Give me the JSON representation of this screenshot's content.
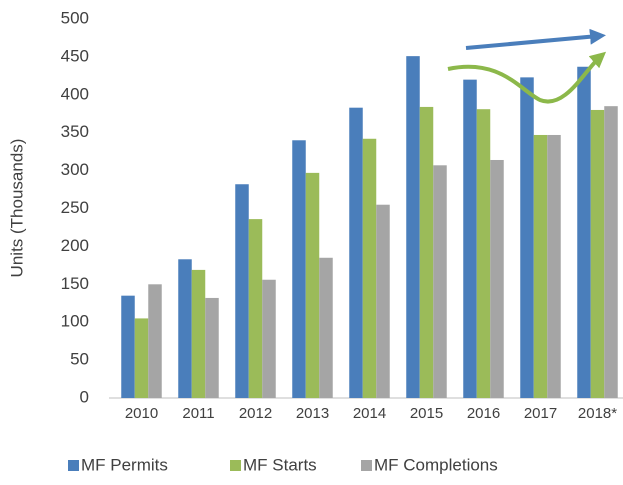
{
  "chart_data": {
    "type": "bar",
    "y_label": "Units (Thousands)",
    "categories": [
      "2010",
      "2011",
      "2012",
      "2013",
      "2014",
      "2015",
      "2016",
      "2017",
      "2018*"
    ],
    "series": [
      {
        "name": "MF Permits",
        "color": "#4a7ebb",
        "values": [
          135,
          183,
          282,
          340,
          383,
          451,
          420,
          423,
          437
        ]
      },
      {
        "name": "MF Starts",
        "color": "#9bbb59",
        "values": [
          105,
          169,
          236,
          297,
          342,
          384,
          381,
          347,
          380
        ]
      },
      {
        "name": "MF Completions",
        "color": "#a5a5a5",
        "values": [
          150,
          132,
          156,
          185,
          255,
          307,
          314,
          347,
          385
        ]
      }
    ],
    "ylim": [
      0,
      500
    ],
    "yticks": [
      0,
      50,
      100,
      150,
      200,
      250,
      300,
      350,
      400,
      450,
      500
    ],
    "grid": false,
    "legend": "bottom"
  }
}
